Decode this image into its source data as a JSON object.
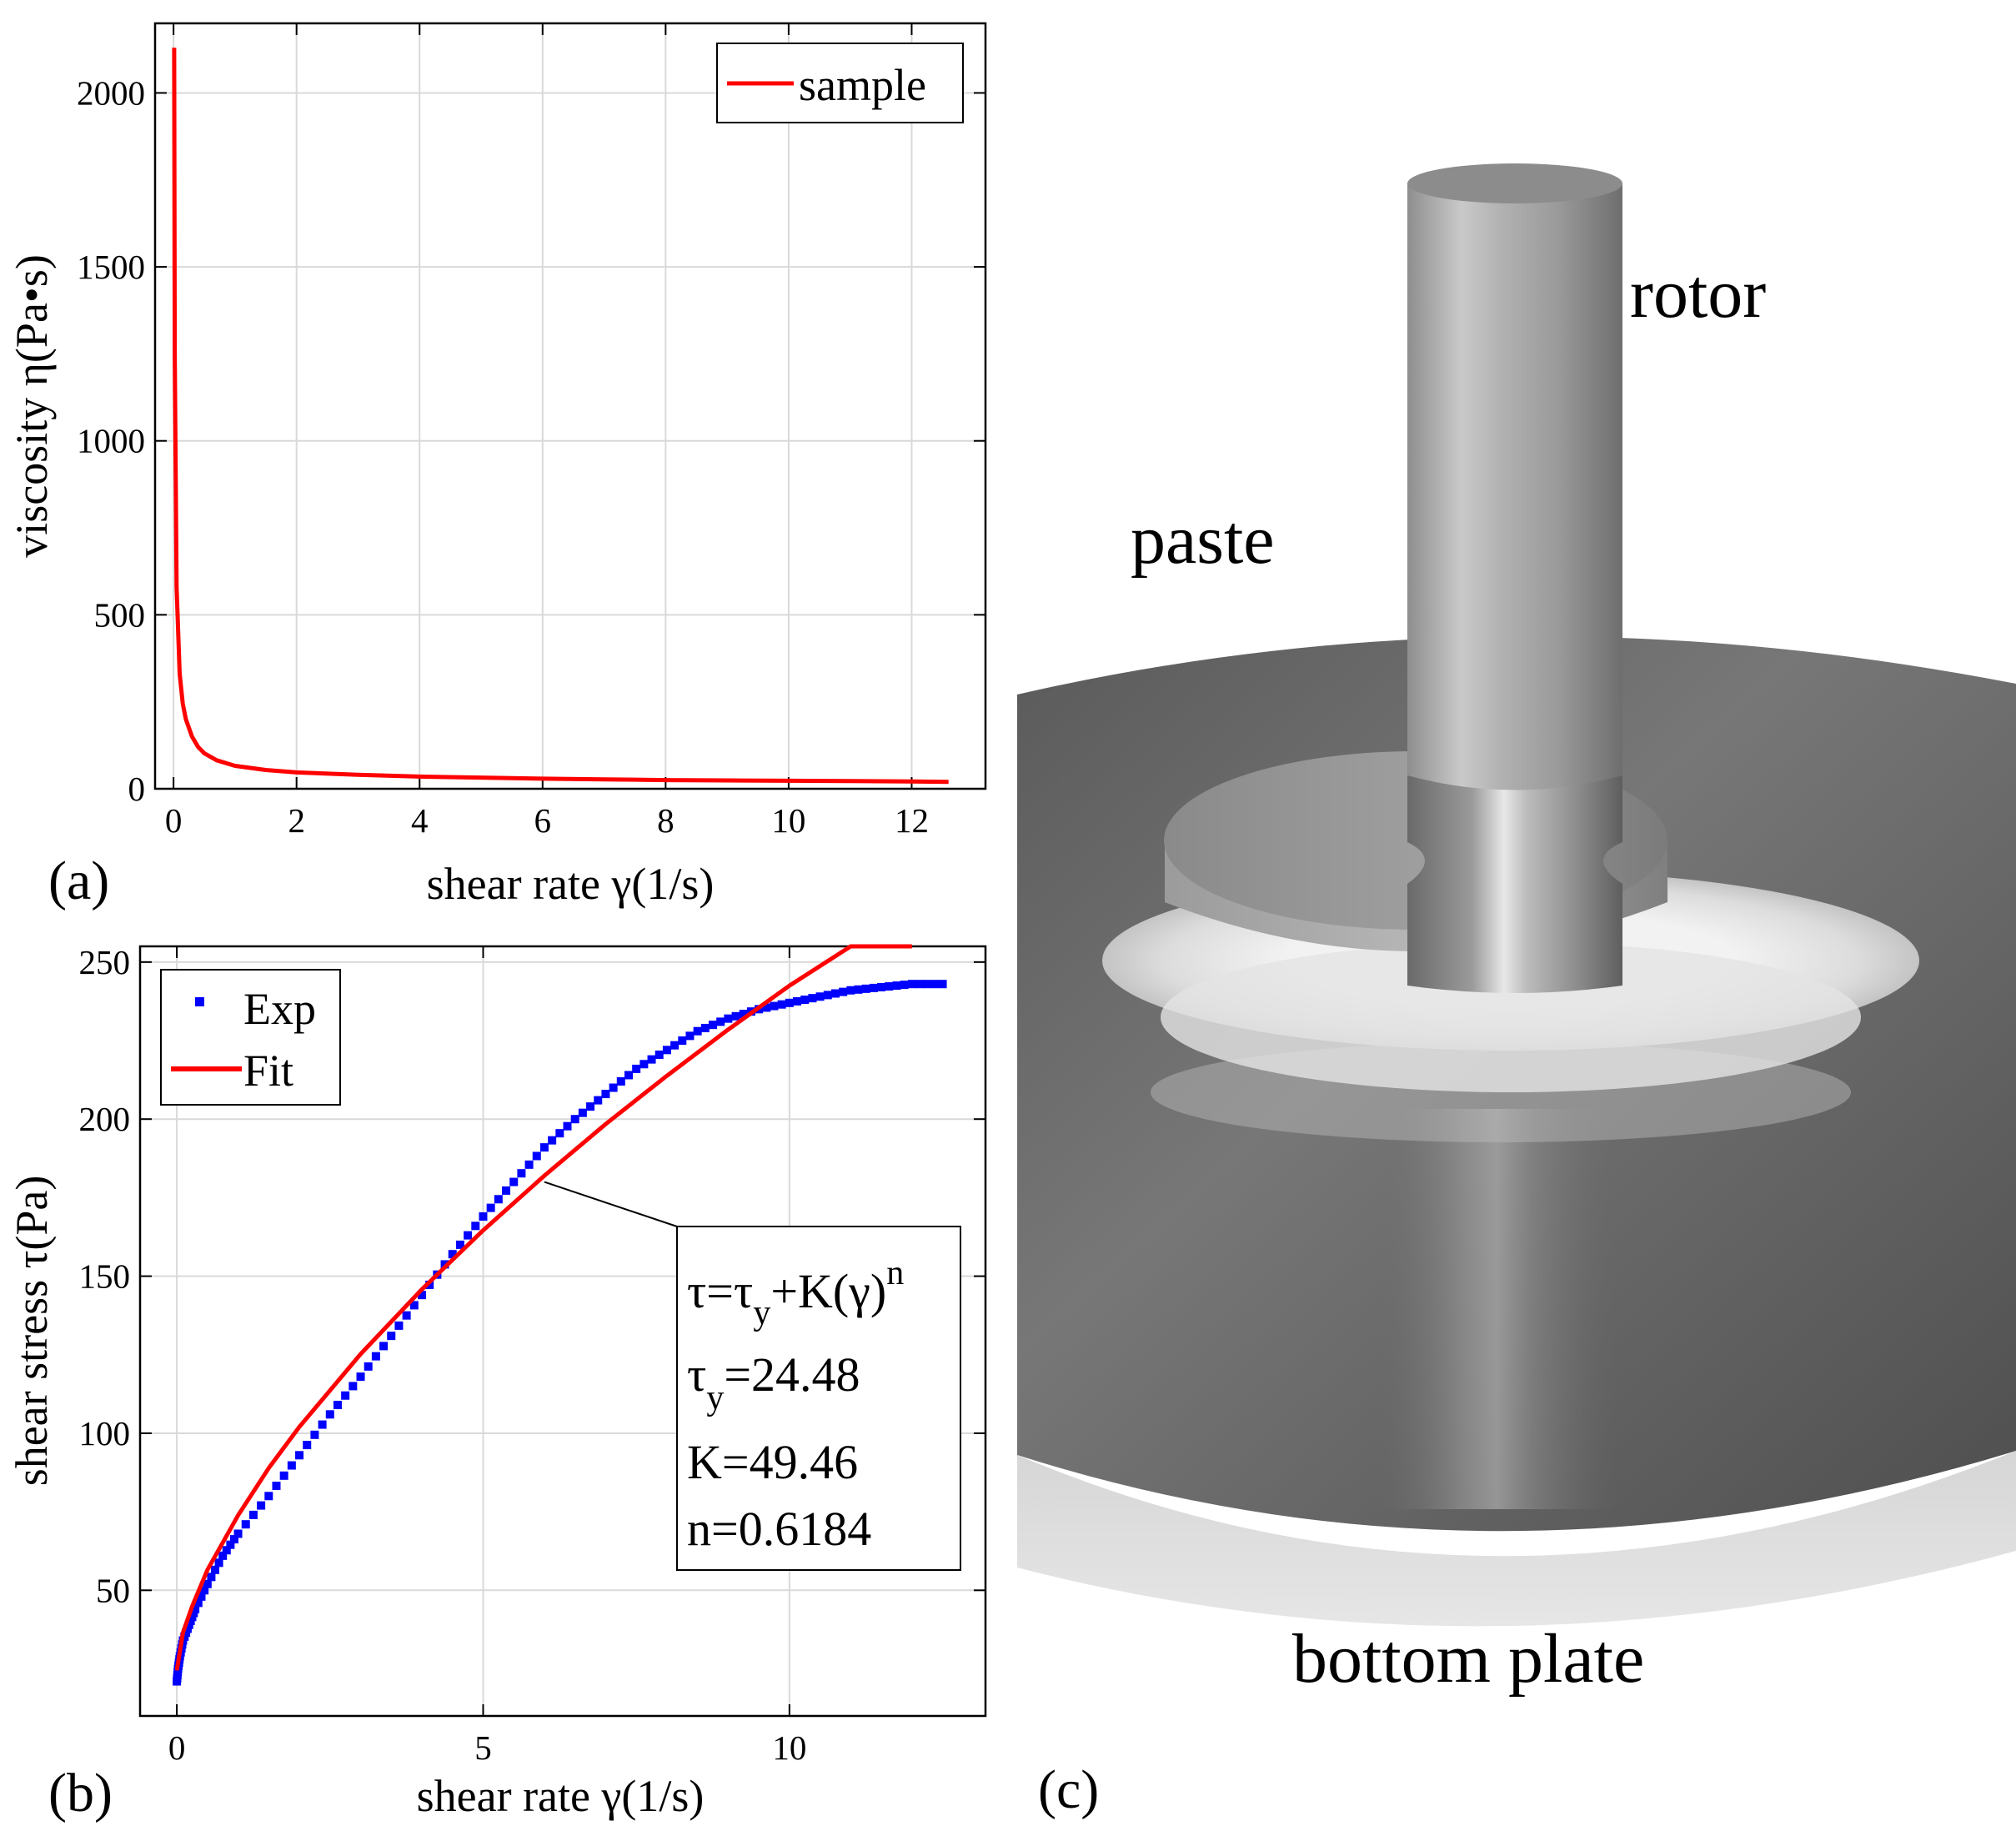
{
  "chart_data": [
    {
      "id": "a",
      "type": "line",
      "panel_label": "(a)",
      "xlabel": "shear rate γ(1/s)",
      "ylabel": "viscosity η(Pa•s)",
      "xlim": [
        -0.3,
        13.2
      ],
      "ylim": [
        0,
        2200
      ],
      "xticks": [
        0,
        2,
        4,
        6,
        8,
        10,
        12
      ],
      "yticks": [
        0,
        500,
        1000,
        1500,
        2000
      ],
      "grid": true,
      "legend": "top-right",
      "series": [
        {
          "name": "sample",
          "color": "#ff0000",
          "style": "line",
          "x": [
            0.01,
            0.02,
            0.05,
            0.1,
            0.15,
            0.2,
            0.3,
            0.4,
            0.5,
            0.7,
            1.0,
            1.5,
            2,
            3,
            4,
            5,
            6,
            7,
            8,
            9,
            10,
            11,
            12,
            12.6
          ],
          "y": [
            2130,
            1250,
            580,
            330,
            245,
            200,
            150,
            120,
            102,
            82,
            66,
            54,
            47,
            40,
            35,
            32,
            29,
            27,
            25,
            24,
            23,
            22,
            21,
            20
          ]
        }
      ]
    },
    {
      "id": "b",
      "type": "scatter",
      "panel_label": "(b)",
      "xlabel": "shear rate γ(1/s)",
      "ylabel": "shear stress τ(Pa)",
      "xlim": [
        -0.6,
        13.2
      ],
      "ylim": [
        10,
        255
      ],
      "xticks": [
        0,
        5,
        10
      ],
      "yticks": [
        50,
        100,
        150,
        200,
        250
      ],
      "grid": true,
      "legend": "top-left",
      "series": [
        {
          "name": "Exp",
          "color": "#0000ff",
          "style": "markers",
          "x": [
            0.0,
            0.02,
            0.05,
            0.1,
            0.2,
            0.3,
            0.5,
            0.75,
            1.0,
            1.5,
            2.0,
            2.5,
            3.0,
            3.5,
            4.0,
            4.5,
            5.0,
            5.5,
            6.0,
            6.5,
            7.0,
            7.5,
            8.0,
            8.5,
            9.0,
            9.5,
            10.0,
            10.5,
            11.0,
            11.5,
            12.0,
            12.5
          ],
          "y": [
            21,
            25,
            29,
            34,
            39,
            44,
            52,
            61,
            68,
            80,
            93,
            106,
            118,
            131,
            144,
            157,
            169,
            180,
            191,
            200,
            208,
            216,
            222,
            228,
            232,
            235,
            237,
            239,
            241,
            242,
            243,
            243
          ]
        },
        {
          "name": "Fit",
          "color": "#ff0000",
          "style": "line",
          "x": [
            0.0,
            0.1,
            0.25,
            0.5,
            1.0,
            1.5,
            2.0,
            3.0,
            4.0,
            5.0,
            6.0,
            7.0,
            8.0,
            9.0,
            10.0,
            11.0,
            12.0
          ],
          "y": [
            24.48,
            36.5,
            44.9,
            56.5,
            73.9,
            88.9,
            102.0,
            125.2,
            145.8,
            164.6,
            182.0,
            198.4,
            213.8,
            228.5,
            242.5,
            255.9,
            268.9
          ]
        }
      ],
      "annotation": {
        "formula_base": "τ=τ",
        "formula_sub": "y",
        "formula_mid": "+K(γ)",
        "formula_sup": "n",
        "tau_base": "τ",
        "tau_sub": "y",
        "tau_value": "=24.48",
        "k_line": "K=49.46",
        "n_line": "n=0.6184",
        "arrow_target": [
          6.0,
          180
        ]
      }
    }
  ],
  "panel_c": {
    "panel_label": "(c)",
    "labels": {
      "rotor": "rotor",
      "paste": "paste",
      "bottom_plate": "bottom plate"
    }
  }
}
